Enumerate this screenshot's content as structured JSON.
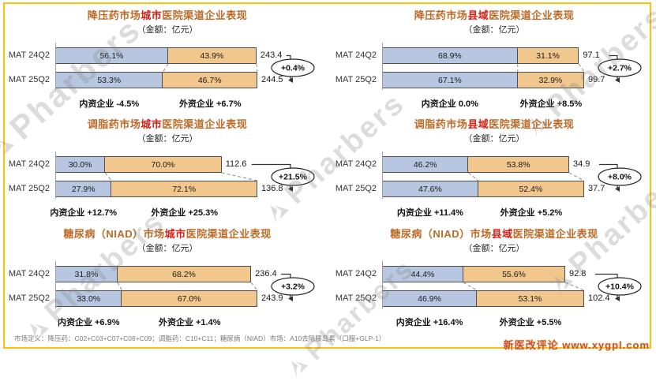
{
  "watermark": {
    "brand": "Pharbers",
    "source": "新医改评论 www.xygpl.com"
  },
  "footnote": "市场定义：降压药：C02+C03+C07+C08+C09；调脂药：C10+C11；糖尿病（NIAD）市场：A10去除胰岛素（口服+GLP-1）",
  "colors": {
    "domestic_fill": "#b8c7e1",
    "foreign_fill": "#f1c78e",
    "segment_border": "#4d4d4d",
    "title_main": "#bd6b26",
    "title_highlight": "#d92015",
    "frame_border": "#fdc10a"
  },
  "chart_data": [
    {
      "type": "bar",
      "stacked": true,
      "orientation": "horizontal",
      "title_parts": [
        "降压药市场",
        "城市",
        "医院渠道企业表现"
      ],
      "subtitle": "（金额：亿元）",
      "categories": [
        "MAT 24Q2",
        "MAT 25Q2"
      ],
      "series": [
        {
          "name": "内资企业",
          "values": [
            56.1,
            53.3
          ]
        },
        {
          "name": "外资企业",
          "values": [
            43.9,
            46.7
          ]
        }
      ],
      "totals": [
        243.4,
        244.5
      ],
      "total_growth": "+0.4%",
      "segment_growth": [
        "内资企业 -4.5%",
        "外资企业 +6.7%"
      ]
    },
    {
      "type": "bar",
      "stacked": true,
      "orientation": "horizontal",
      "title_parts": [
        "降压药市场",
        "县域",
        "医院渠道企业表现"
      ],
      "subtitle": "（金额：亿元）",
      "categories": [
        "MAT 24Q2",
        "MAT 25Q2"
      ],
      "series": [
        {
          "name": "内资企业",
          "values": [
            68.9,
            67.1
          ]
        },
        {
          "name": "外资企业",
          "values": [
            31.1,
            32.9
          ]
        }
      ],
      "totals": [
        97.1,
        99.7
      ],
      "total_growth": "+2.7%",
      "segment_growth": [
        "内资企业 0.0%",
        "外资企业 +8.5%"
      ]
    },
    {
      "type": "bar",
      "stacked": true,
      "orientation": "horizontal",
      "title_parts": [
        "调脂药市场",
        "城市",
        "医院渠道企业表现"
      ],
      "subtitle": "（金额：亿元）",
      "categories": [
        "MAT 24Q2",
        "MAT 25Q2"
      ],
      "series": [
        {
          "name": "内资企业",
          "values": [
            30.0,
            27.9
          ]
        },
        {
          "name": "外资企业",
          "values": [
            70.0,
            72.1
          ]
        }
      ],
      "totals": [
        112.6,
        136.8
      ],
      "total_growth": "+21.5%",
      "segment_growth": [
        "内资企业 +12.7%",
        "外资企业 +25.3%"
      ]
    },
    {
      "type": "bar",
      "stacked": true,
      "orientation": "horizontal",
      "title_parts": [
        "调脂药市场",
        "县域",
        "医院渠道企业表现"
      ],
      "subtitle": "（金额：亿元）",
      "categories": [
        "MAT 24Q2",
        "MAT 25Q2"
      ],
      "series": [
        {
          "name": "内资企业",
          "values": [
            46.2,
            47.6
          ]
        },
        {
          "name": "外资企业",
          "values": [
            53.8,
            52.4
          ]
        }
      ],
      "totals": [
        34.9,
        37.7
      ],
      "total_growth": "+8.0%",
      "segment_growth": [
        "内资企业 +11.4%",
        "外资企业 +5.2%"
      ]
    },
    {
      "type": "bar",
      "stacked": true,
      "orientation": "horizontal",
      "title_parts": [
        "糖尿病（NIAD）市场",
        "城市",
        "医院渠道企业表现"
      ],
      "subtitle": "（金额：亿元）",
      "categories": [
        "MAT 24Q2",
        "MAT 25Q2"
      ],
      "series": [
        {
          "name": "内资企业",
          "values": [
            31.8,
            33.0
          ]
        },
        {
          "name": "外资企业",
          "values": [
            68.2,
            67.0
          ]
        }
      ],
      "totals": [
        236.4,
        243.9
      ],
      "total_growth": "+3.2%",
      "segment_growth": [
        "内资企业 +6.9%",
        "外资企业 +1.4%"
      ]
    },
    {
      "type": "bar",
      "stacked": true,
      "orientation": "horizontal",
      "title_parts": [
        "糖尿病（NIAD）市场",
        "县域",
        "医院渠道企业表现"
      ],
      "subtitle": "（金额：亿元）",
      "categories": [
        "MAT 24Q2",
        "MAT 25Q2"
      ],
      "series": [
        {
          "name": "内资企业",
          "values": [
            44.4,
            46.9
          ]
        },
        {
          "name": "外资企业",
          "values": [
            55.6,
            53.1
          ]
        }
      ],
      "totals": [
        92.8,
        102.4
      ],
      "total_growth": "+10.4%",
      "segment_growth": [
        "内资企业 +16.4%",
        "外资企业 +5.5%"
      ]
    }
  ]
}
